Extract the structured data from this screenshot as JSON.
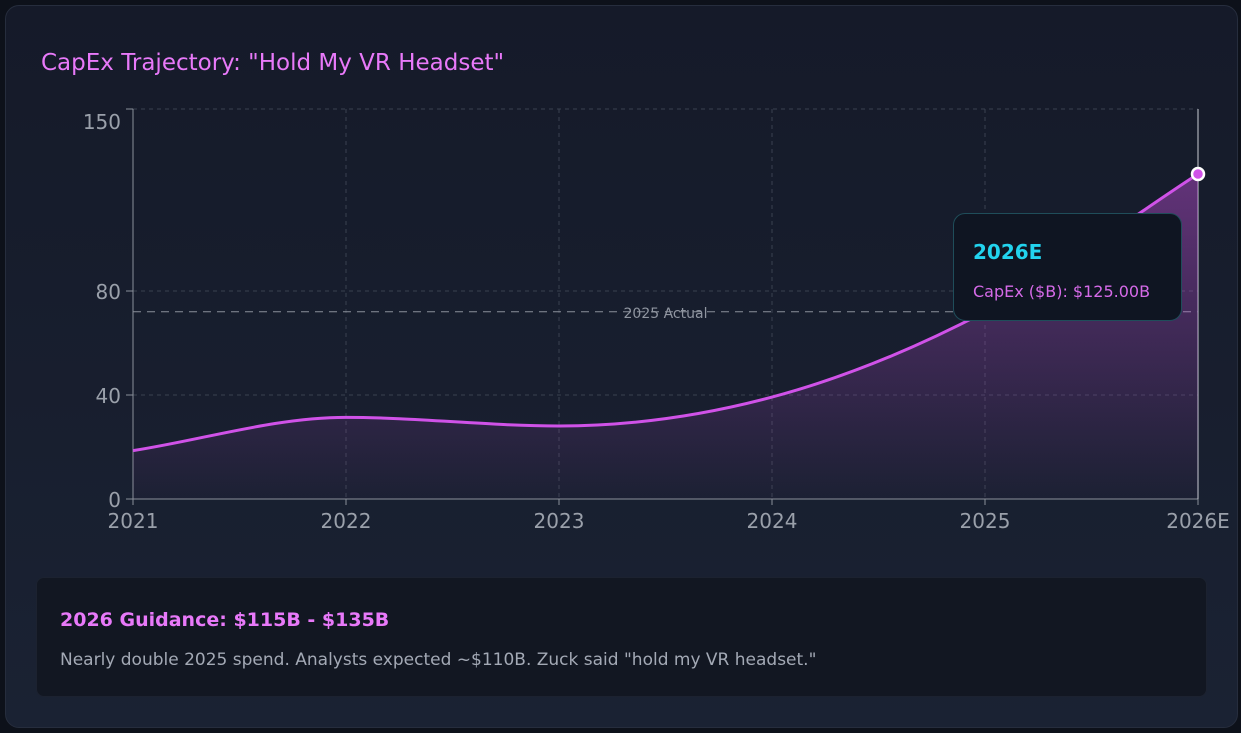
{
  "title": "CapEx Trajectory: \"Hold My VR Headset\"",
  "chart_data": {
    "type": "area",
    "title": "CapEx Trajectory: \"Hold My VR Headset\"",
    "categories": [
      "2021",
      "2022",
      "2023",
      "2024",
      "2025",
      "2026E"
    ],
    "series": [
      {
        "name": "CapEx ($B)",
        "values": [
          18.6,
          31.4,
          28.1,
          39.2,
          72,
          125
        ]
      }
    ],
    "ylim": [
      0,
      150
    ],
    "yticks": [
      0,
      40,
      80,
      150
    ],
    "grid": true,
    "reference_line": {
      "value": 72,
      "label": "2025 Actual"
    },
    "line_color": "#d052e8",
    "tooltip": {
      "category": "2026E",
      "label": "CapEx ($B): $125.00B"
    }
  },
  "note": {
    "heading": "2026 Guidance: $115B - $135B",
    "text": "Nearly double 2025 spend. Analysts expected ~$110B. Zuck said \"hold my VR headset.\""
  }
}
